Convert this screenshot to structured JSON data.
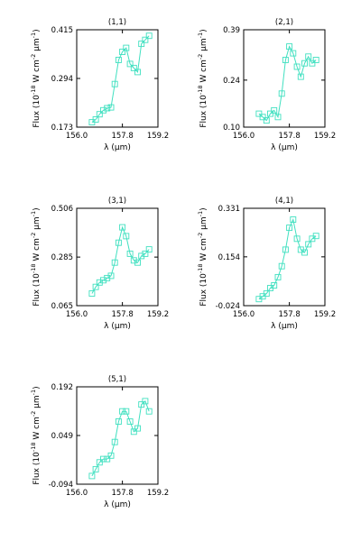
{
  "chart_data": [
    {
      "type": "scatter",
      "title": "(1,1)",
      "xlabel": "λ (μm)",
      "ylabel": "Flux (10^-18 W cm^-2 μm^-1)",
      "xlim": [
        156.0,
        159.2
      ],
      "ylim": [
        0.173,
        0.415
      ],
      "xticks": [
        "156.0",
        "157.8",
        "159.2"
      ],
      "yticks": [
        "0.173",
        "0.294",
        "0.415"
      ],
      "series": [
        {
          "marker": "square",
          "x": [
            156.6,
            156.75,
            156.9,
            157.05,
            157.2,
            157.35,
            157.5,
            157.65,
            157.8,
            157.95,
            158.1,
            158.25,
            158.4,
            158.55,
            158.7,
            158.85
          ],
          "y": [
            0.185,
            0.192,
            0.205,
            0.215,
            0.22,
            0.222,
            0.28,
            0.34,
            0.36,
            0.37,
            0.33,
            0.32,
            0.31,
            0.38,
            0.39,
            0.4
          ]
        }
      ]
    },
    {
      "type": "scatter",
      "title": "(2,1)",
      "xlabel": "λ (μm)",
      "ylabel": "Flux (10^-18 W cm^-2 μm^-1)",
      "xlim": [
        156.0,
        159.2
      ],
      "ylim": [
        0.1,
        0.39
      ],
      "xticks": [
        "156.0",
        "157.8",
        "159.2"
      ],
      "yticks": [
        "0.10",
        "0.24",
        "0.39"
      ],
      "series": [
        {
          "marker": "square",
          "x": [
            156.6,
            156.75,
            156.9,
            157.05,
            157.2,
            157.35,
            157.5,
            157.65,
            157.8,
            157.95,
            158.1,
            158.25,
            158.4,
            158.55,
            158.7,
            158.85
          ],
          "y": [
            0.14,
            0.13,
            0.12,
            0.14,
            0.15,
            0.13,
            0.2,
            0.3,
            0.34,
            0.32,
            0.28,
            0.25,
            0.29,
            0.31,
            0.29,
            0.3
          ]
        }
      ]
    },
    {
      "type": "scatter",
      "title": "(3,1)",
      "xlabel": "λ (μm)",
      "ylabel": "Flux (10^-18 W cm^-2 μm^-1)",
      "xlim": [
        156.0,
        159.2
      ],
      "ylim": [
        0.065,
        0.506
      ],
      "xticks": [
        "156.0",
        "157.8",
        "159.2"
      ],
      "yticks": [
        "0.065",
        "0.285",
        "0.506"
      ],
      "series": [
        {
          "marker": "square",
          "x": [
            156.6,
            156.75,
            156.9,
            157.05,
            157.2,
            157.35,
            157.5,
            157.65,
            157.8,
            157.95,
            158.1,
            158.25,
            158.4,
            158.55,
            158.7,
            158.85
          ],
          "y": [
            0.12,
            0.15,
            0.17,
            0.18,
            0.19,
            0.2,
            0.26,
            0.35,
            0.42,
            0.38,
            0.3,
            0.27,
            0.26,
            0.29,
            0.3,
            0.32
          ]
        }
      ]
    },
    {
      "type": "scatter",
      "title": "(4,1)",
      "xlabel": "λ (μm)",
      "ylabel": "Flux (10^-18 W cm^-2 μm^-1)",
      "xlim": [
        156.0,
        159.2
      ],
      "ylim": [
        -0.024,
        0.331
      ],
      "xticks": [
        "156.0",
        "157.8",
        "159.2"
      ],
      "yticks": [
        "-0.024",
        "0.154",
        "0.331"
      ],
      "series": [
        {
          "marker": "square",
          "x": [
            156.6,
            156.75,
            156.9,
            157.05,
            157.2,
            157.35,
            157.5,
            157.65,
            157.8,
            157.95,
            158.1,
            158.25,
            158.4,
            158.55,
            158.7,
            158.85
          ],
          "y": [
            0.0,
            0.01,
            0.02,
            0.04,
            0.05,
            0.08,
            0.12,
            0.18,
            0.26,
            0.29,
            0.22,
            0.18,
            0.17,
            0.2,
            0.22,
            0.23
          ]
        }
      ]
    },
    {
      "type": "scatter",
      "title": "(5,1)",
      "xlabel": "λ (μm)",
      "ylabel": "Flux (10^-18 W cm^-2 μm^-1)",
      "xlim": [
        156.0,
        159.2
      ],
      "ylim": [
        -0.094,
        0.192
      ],
      "xticks": [
        "156.0",
        "157.8",
        "159.2"
      ],
      "yticks": [
        "-0.094",
        "0.049",
        "0.192"
      ],
      "series": [
        {
          "marker": "square",
          "x": [
            156.6,
            156.75,
            156.9,
            157.05,
            157.2,
            157.35,
            157.5,
            157.65,
            157.8,
            157.95,
            158.1,
            158.25,
            158.4,
            158.55,
            158.7,
            158.85
          ],
          "y": [
            -0.07,
            -0.05,
            -0.03,
            -0.02,
            -0.02,
            -0.01,
            0.03,
            0.09,
            0.12,
            0.12,
            0.09,
            0.06,
            0.07,
            0.14,
            0.15,
            0.12
          ]
        }
      ]
    }
  ],
  "colors": {
    "series": "#40e0c0",
    "axes": "#000000"
  }
}
